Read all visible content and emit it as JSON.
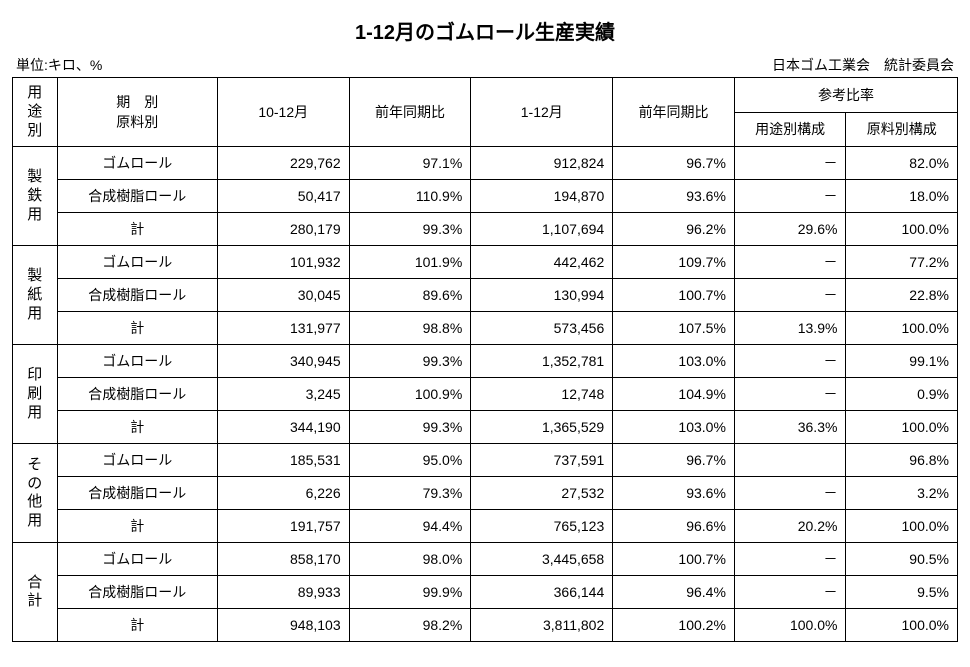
{
  "title": "1-12月のゴムロール生産実績",
  "unit_label": "単位:キロ、%",
  "source_label": "日本ゴム工業会　統計委員会",
  "header": {
    "usage": "用途別",
    "period_material": "期　別\n原料別",
    "q4": "10-12月",
    "q4_yoy": "前年同期比",
    "full": "1-12月",
    "full_yoy": "前年同期比",
    "ref": "参考比率",
    "ref_usage": "用途別構成",
    "ref_material": "原料別構成"
  },
  "materials": [
    "ゴムロール",
    "合成樹脂ロール",
    "計"
  ],
  "categories": [
    {
      "label": "製鉄用",
      "rows": [
        {
          "q4": "229,762",
          "q4_yoy": "97.1%",
          "full": "912,824",
          "full_yoy": "96.7%",
          "ref_usage": "－",
          "ref_mat": "82.0%"
        },
        {
          "q4": "50,417",
          "q4_yoy": "110.9%",
          "full": "194,870",
          "full_yoy": "93.6%",
          "ref_usage": "－",
          "ref_mat": "18.0%"
        },
        {
          "q4": "280,179",
          "q4_yoy": "99.3%",
          "full": "1,107,694",
          "full_yoy": "96.2%",
          "ref_usage": "29.6%",
          "ref_mat": "100.0%"
        }
      ]
    },
    {
      "label": "製紙用",
      "rows": [
        {
          "q4": "101,932",
          "q4_yoy": "101.9%",
          "full": "442,462",
          "full_yoy": "109.7%",
          "ref_usage": "－",
          "ref_mat": "77.2%"
        },
        {
          "q4": "30,045",
          "q4_yoy": "89.6%",
          "full": "130,994",
          "full_yoy": "100.7%",
          "ref_usage": "－",
          "ref_mat": "22.8%"
        },
        {
          "q4": "131,977",
          "q4_yoy": "98.8%",
          "full": "573,456",
          "full_yoy": "107.5%",
          "ref_usage": "13.9%",
          "ref_mat": "100.0%"
        }
      ]
    },
    {
      "label": "印刷用",
      "rows": [
        {
          "q4": "340,945",
          "q4_yoy": "99.3%",
          "full": "1,352,781",
          "full_yoy": "103.0%",
          "ref_usage": "－",
          "ref_mat": "99.1%"
        },
        {
          "q4": "3,245",
          "q4_yoy": "100.9%",
          "full": "12,748",
          "full_yoy": "104.9%",
          "ref_usage": "－",
          "ref_mat": "0.9%"
        },
        {
          "q4": "344,190",
          "q4_yoy": "99.3%",
          "full": "1,365,529",
          "full_yoy": "103.0%",
          "ref_usage": "36.3%",
          "ref_mat": "100.0%"
        }
      ]
    },
    {
      "label": "その他用",
      "rows": [
        {
          "q4": "185,531",
          "q4_yoy": "95.0%",
          "full": "737,591",
          "full_yoy": "96.7%",
          "ref_usage": "",
          "ref_mat": "96.8%"
        },
        {
          "q4": "6,226",
          "q4_yoy": "79.3%",
          "full": "27,532",
          "full_yoy": "93.6%",
          "ref_usage": "－",
          "ref_mat": "3.2%"
        },
        {
          "q4": "191,757",
          "q4_yoy": "94.4%",
          "full": "765,123",
          "full_yoy": "96.6%",
          "ref_usage": "20.2%",
          "ref_mat": "100.0%"
        }
      ]
    },
    {
      "label": "合計",
      "rows": [
        {
          "q4": "858,170",
          "q4_yoy": "98.0%",
          "full": "3,445,658",
          "full_yoy": "100.7%",
          "ref_usage": "－",
          "ref_mat": "90.5%"
        },
        {
          "q4": "89,933",
          "q4_yoy": "99.9%",
          "full": "366,144",
          "full_yoy": "96.4%",
          "ref_usage": "－",
          "ref_mat": "9.5%"
        },
        {
          "q4": "948,103",
          "q4_yoy": "98.2%",
          "full": "3,811,802",
          "full_yoy": "100.2%",
          "ref_usage": "100.0%",
          "ref_mat": "100.0%"
        }
      ]
    }
  ]
}
